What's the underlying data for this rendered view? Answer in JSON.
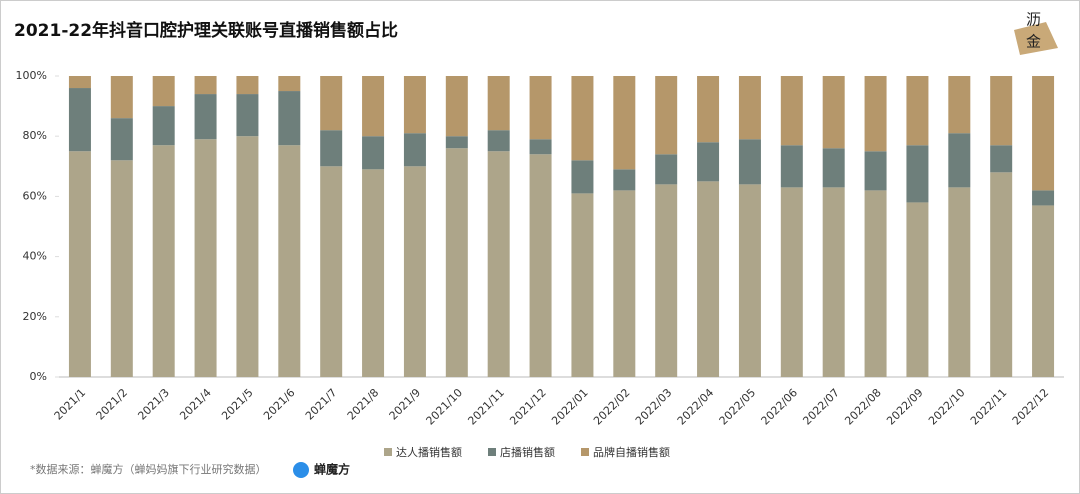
{
  "chart_data": {
    "type": "stacked_bar",
    "title": "2021-22年抖音口腔护理关联账号直播销售额占比",
    "categories": [
      "2021/1",
      "2021/2",
      "2021/3",
      "2021/4",
      "2021/5",
      "2021/6",
      "2021/7",
      "2021/8",
      "2021/9",
      "2021/10",
      "2021/11",
      "2021/12",
      "2022/01",
      "2022/02",
      "2022/03",
      "2022/04",
      "2022/05",
      "2022/06",
      "2022/07",
      "2022/08",
      "2022/09",
      "2022/10",
      "2022/11",
      "2022/12"
    ],
    "series": [
      {
        "name": "达人播销售额",
        "color": "#ada58a",
        "values": [
          75,
          72,
          77,
          79,
          80,
          77,
          70,
          69,
          70,
          76,
          75,
          74,
          61,
          62,
          64,
          65,
          64,
          63,
          63,
          62,
          58,
          63,
          68,
          57
        ]
      },
      {
        "name": "店播销售额",
        "color": "#6e7f7b",
        "values": [
          21,
          14,
          13,
          15,
          14,
          18,
          12,
          11,
          11,
          4,
          7,
          5,
          11,
          7,
          10,
          13,
          15,
          14,
          13,
          13,
          19,
          18,
          9,
          5
        ]
      },
      {
        "name": "品牌自播销售额",
        "color": "#b5976a",
        "values": [
          4,
          14,
          10,
          6,
          6,
          5,
          18,
          20,
          19,
          20,
          18,
          21,
          28,
          31,
          26,
          22,
          21,
          23,
          24,
          25,
          23,
          19,
          23,
          38
        ]
      }
    ],
    "ylim": [
      0,
      100
    ],
    "yticks": [
      {
        "value": 0,
        "label": "0%"
      },
      {
        "value": 20,
        "label": "20%"
      },
      {
        "value": 40,
        "label": "40%"
      },
      {
        "value": 60,
        "label": "60%"
      },
      {
        "value": 80,
        "label": "80%"
      },
      {
        "value": 100,
        "label": "100%"
      }
    ],
    "legend": "bottom"
  },
  "footer": {
    "source": "*数据来源：蝉魔方（蝉妈妈旗下行业研究数据）",
    "logo": "蝉魔方"
  },
  "badge": [
    "沥",
    "金"
  ]
}
